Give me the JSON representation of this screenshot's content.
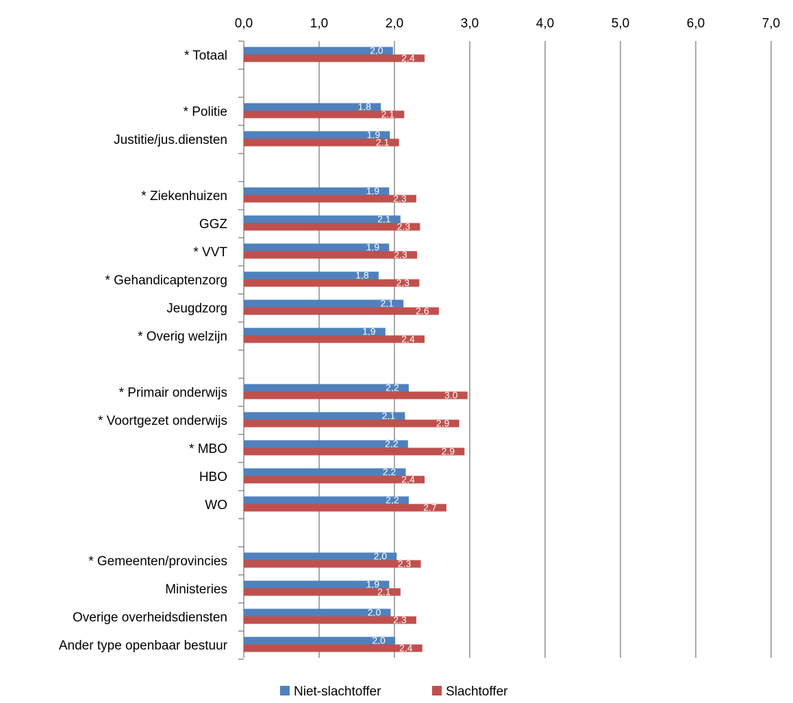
{
  "chart_data": {
    "type": "bar",
    "orientation": "horizontal",
    "x_ticks": [
      "0,0",
      "1,0",
      "2,0",
      "3,0",
      "4,0",
      "5,0",
      "6,0",
      "7,0"
    ],
    "xlim": [
      0,
      7
    ],
    "grid": true,
    "legend_position": "bottom",
    "categories": [
      "* Totaal",
      "",
      "* Politie",
      "Justitie/jus.diensten",
      "",
      "* Ziekenhuizen",
      "GGZ",
      "* VVT",
      "* Gehandicaptenzorg",
      "Jeugdzorg",
      "* Overig welzijn",
      "",
      "* Primair onderwijs",
      "* Voortgezet onderwijs",
      "* MBO",
      "HBO",
      "WO",
      "",
      "* Gemeenten/provincies",
      "Ministeries",
      "Overige overheidsdiensten",
      "Ander type openbaar bestuur"
    ],
    "series": [
      {
        "name": "Niet-slachtoffer",
        "color": "#4f81bd",
        "values": [
          1.98,
          null,
          1.82,
          1.94,
          null,
          1.93,
          2.08,
          1.93,
          1.79,
          2.12,
          1.88,
          null,
          2.19,
          2.14,
          2.18,
          2.15,
          2.19,
          null,
          2.03,
          1.93,
          1.95,
          2.01
        ],
        "labels": [
          "2,0",
          "",
          "1,8",
          "1,9",
          "",
          "1,9",
          "2,1",
          "1,9",
          "1,8",
          "2,1",
          "1,9",
          "",
          "2,2",
          "2,1",
          "2,2",
          "2,2",
          "2,2",
          "",
          "2,0",
          "1,9",
          "2,0",
          "2,0"
        ]
      },
      {
        "name": "Slachtoffer",
        "color": "#c0504d",
        "values": [
          2.4,
          null,
          2.13,
          2.06,
          null,
          2.29,
          2.34,
          2.3,
          2.33,
          2.59,
          2.4,
          null,
          2.97,
          2.86,
          2.93,
          2.4,
          2.69,
          null,
          2.35,
          2.08,
          2.29,
          2.37
        ],
        "labels": [
          "2.4",
          "",
          "2.1",
          "2.1",
          "",
          "2.3",
          "2.3",
          "2.3",
          "2.3",
          "2.6",
          "2.4",
          "",
          "3.0",
          "2.9",
          "2.9",
          "2.4",
          "2.7",
          "",
          "2.3",
          "2.1",
          "2.3",
          "2.4"
        ]
      }
    ]
  }
}
